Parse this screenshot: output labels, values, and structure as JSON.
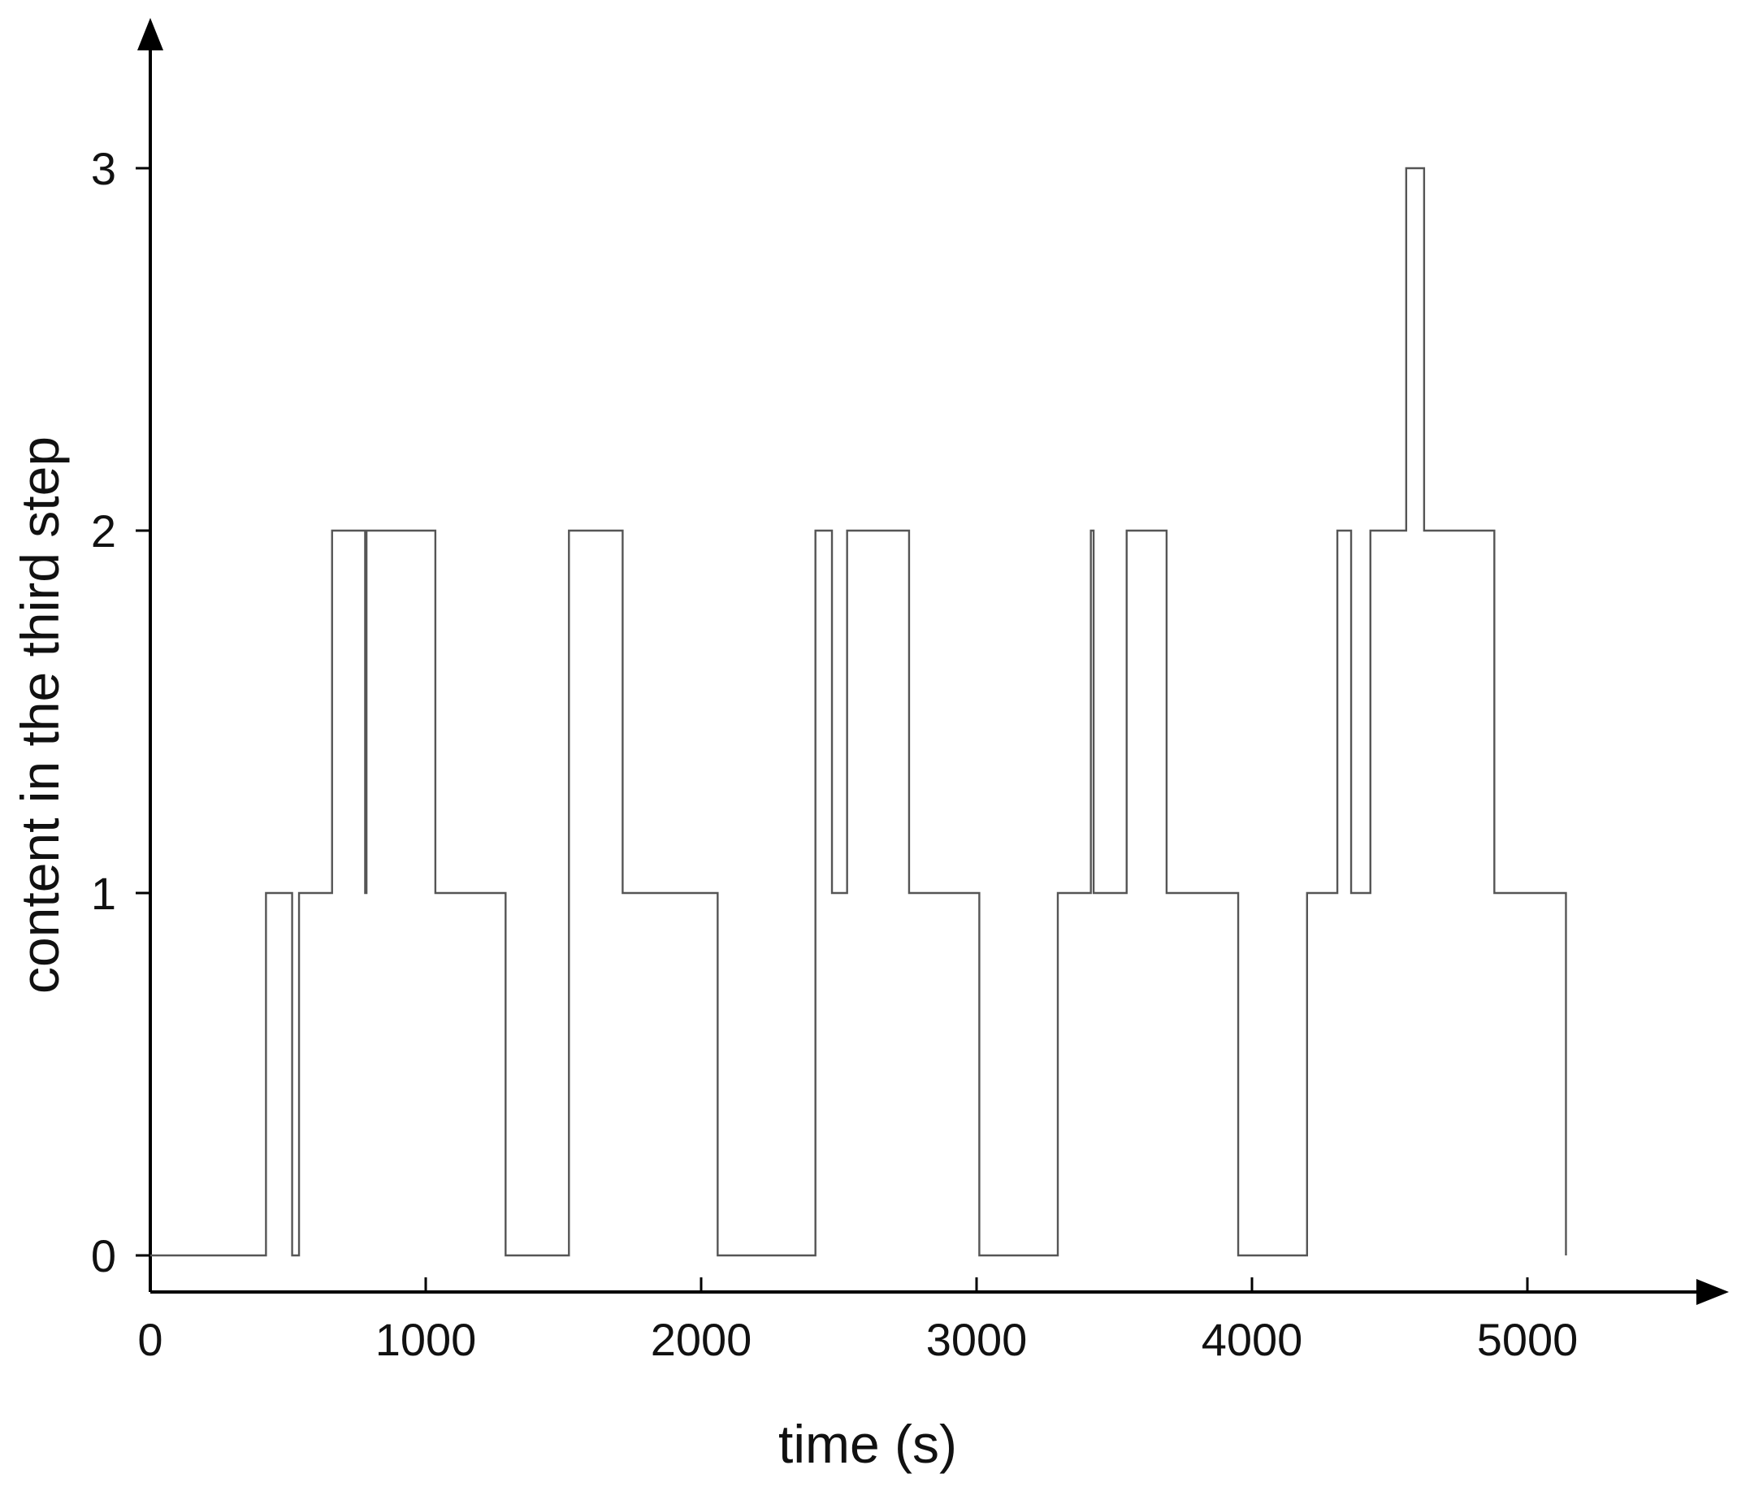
{
  "chart_data": {
    "type": "line",
    "step": true,
    "xlabel": "time (s)",
    "ylabel": "content in the third step",
    "xlim": [
      0,
      5700
    ],
    "ylim": [
      -0.1,
      3.4
    ],
    "xticks": [
      0,
      1000,
      2000,
      3000,
      4000,
      5000
    ],
    "yticks": [
      0,
      1,
      2,
      3
    ],
    "grid": false,
    "legend": "none",
    "colors": {
      "line": "#555555",
      "axis": "#000000"
    },
    "series": [
      {
        "x": [
          0,
          420,
          515,
          540,
          660,
          780,
          785,
          1035,
          1290,
          1520,
          1715,
          2060,
          2415,
          2475,
          2530,
          2755,
          3010,
          3295,
          3415,
          3425,
          3545,
          3690,
          3950,
          4200,
          4310,
          4360,
          4430,
          4560,
          4625,
          4880,
          5140
        ],
        "y": [
          0,
          1,
          0,
          1,
          2,
          1,
          2,
          1,
          0,
          2,
          1,
          0,
          2,
          1,
          2,
          1,
          0,
          1,
          2,
          1,
          2,
          1,
          0,
          1,
          2,
          1,
          2,
          3,
          2,
          1,
          0
        ]
      }
    ]
  }
}
